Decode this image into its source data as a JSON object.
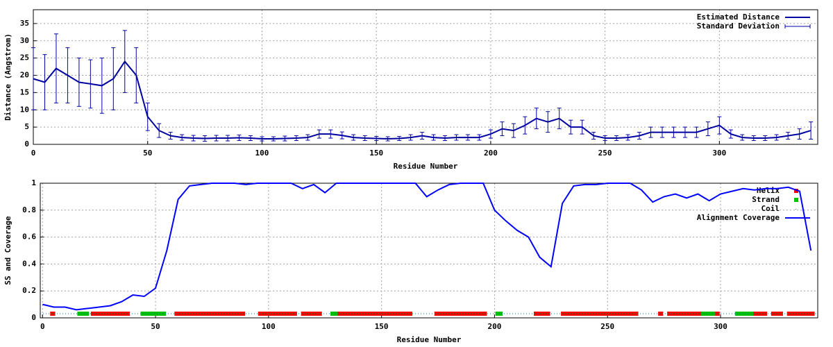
{
  "chart_data": [
    {
      "type": "line",
      "x_label": "Residue Number",
      "y_label": "Distance (Angstrom)",
      "xlim": [
        0,
        343
      ],
      "xticks": [
        0,
        50,
        100,
        150,
        200,
        250,
        300
      ],
      "ylim": [
        0,
        39
      ],
      "yticks": [
        0,
        5,
        10,
        15,
        20,
        25,
        30,
        35
      ],
      "grid": true,
      "legend": "top-right",
      "x": [
        0,
        5,
        10,
        15,
        20,
        25,
        30,
        35,
        40,
        45,
        50,
        55,
        60,
        65,
        70,
        75,
        80,
        85,
        90,
        95,
        100,
        105,
        110,
        115,
        120,
        125,
        130,
        135,
        140,
        145,
        150,
        155,
        160,
        165,
        170,
        175,
        180,
        185,
        190,
        195,
        200,
        205,
        210,
        215,
        220,
        225,
        230,
        235,
        240,
        245,
        250,
        255,
        260,
        265,
        270,
        275,
        280,
        285,
        290,
        295,
        300,
        305,
        310,
        315,
        320,
        325,
        330,
        335,
        340
      ],
      "series": [
        {
          "name": "Estimated Distance",
          "error_name": "Standard Deviation",
          "color": "#0000a0",
          "values": [
            19,
            18,
            22,
            20,
            18,
            17.5,
            17,
            19,
            24,
            20,
            8,
            4,
            2.5,
            2,
            1.8,
            1.7,
            1.8,
            1.8,
            1.9,
            1.8,
            1.6,
            1.6,
            1.7,
            1.8,
            2,
            3,
            3,
            2.6,
            2,
            1.8,
            1.7,
            1.6,
            1.7,
            2,
            2.5,
            2,
            1.8,
            2,
            2,
            2,
            3,
            4.5,
            4,
            5.5,
            7.5,
            6.5,
            7.5,
            5,
            5,
            2.5,
            1.8,
            1.8,
            2,
            2.5,
            3.5,
            3.5,
            3.5,
            3.5,
            3.5,
            4.5,
            5.5,
            3,
            2,
            1.8,
            1.8,
            2,
            2.5,
            3,
            4
          ],
          "errors": [
            9,
            8,
            10,
            8,
            7,
            7,
            8,
            9,
            9,
            8,
            4,
            2,
            1,
            0.8,
            0.8,
            0.8,
            0.8,
            0.8,
            0.8,
            0.7,
            0.6,
            0.6,
            0.7,
            0.7,
            0.8,
            1.2,
            1.2,
            1,
            0.8,
            0.7,
            0.6,
            0.6,
            0.6,
            0.8,
            1,
            0.8,
            0.7,
            0.8,
            0.8,
            0.8,
            1.2,
            2,
            2,
            2.5,
            3,
            3,
            3,
            2,
            2,
            1,
            0.7,
            0.7,
            0.8,
            1,
            1.5,
            1.5,
            1.5,
            1.5,
            1.5,
            2,
            2.5,
            1.2,
            0.8,
            0.7,
            0.7,
            0.8,
            1,
            1.5,
            2.5
          ]
        }
      ]
    },
    {
      "type": "line",
      "x_label": "Residue Number",
      "y_label": "SS and Coverage",
      "xlim": [
        -1,
        343
      ],
      "xticks": [
        0,
        50,
        100,
        150,
        200,
        250,
        300
      ],
      "ylim": [
        0,
        1
      ],
      "yticks": [
        0,
        0.2,
        0.4,
        0.6,
        0.8,
        1
      ],
      "grid": true,
      "legend": "top-right",
      "x": [
        0,
        5,
        10,
        15,
        20,
        25,
        30,
        35,
        40,
        45,
        50,
        55,
        60,
        65,
        70,
        75,
        80,
        85,
        90,
        95,
        100,
        105,
        110,
        115,
        120,
        125,
        130,
        135,
        140,
        145,
        150,
        155,
        160,
        165,
        170,
        175,
        180,
        185,
        190,
        195,
        200,
        205,
        210,
        215,
        220,
        225,
        230,
        235,
        240,
        245,
        250,
        255,
        260,
        265,
        270,
        275,
        280,
        285,
        290,
        295,
        300,
        305,
        310,
        315,
        320,
        325,
        330,
        335,
        340
      ],
      "segments": [
        {
          "name": "Helix",
          "color": "#ff0000",
          "ranges": [
            [
              4,
              5
            ],
            [
              22,
              38
            ],
            [
              59,
              89
            ],
            [
              96,
              112
            ],
            [
              115,
              123
            ],
            [
              131,
              163
            ],
            [
              174,
              196
            ],
            [
              218,
              224
            ],
            [
              230,
              263
            ],
            [
              273,
              274
            ],
            [
              277,
              291
            ],
            [
              298,
              299
            ],
            [
              315,
              320
            ],
            [
              323,
              327
            ],
            [
              330,
              341
            ]
          ]
        },
        {
          "name": "Strand",
          "color": "#00c000",
          "ranges": [
            [
              16,
              20
            ],
            [
              44,
              54
            ],
            [
              128,
              130
            ],
            [
              201,
              203
            ],
            [
              292,
              297
            ],
            [
              307,
              314
            ]
          ]
        },
        {
          "name": "Coil",
          "color": "#008080"
        }
      ],
      "series": [
        {
          "name": "Alignment Coverage",
          "color": "#0000ff",
          "values": [
            0.1,
            0.08,
            0.08,
            0.06,
            0.07,
            0.08,
            0.09,
            0.12,
            0.17,
            0.16,
            0.22,
            0.5,
            0.88,
            0.98,
            0.99,
            1,
            1,
            1,
            0.99,
            1,
            1,
            1,
            1,
            0.96,
            0.99,
            0.93,
            1,
            1,
            1,
            1,
            1,
            1,
            1,
            1,
            0.9,
            0.95,
            0.99,
            1,
            1,
            1,
            0.8,
            0.72,
            0.65,
            0.6,
            0.45,
            0.38,
            0.85,
            0.98,
            0.99,
            0.99,
            1,
            1,
            1,
            0.95,
            0.86,
            0.9,
            0.92,
            0.89,
            0.92,
            0.87,
            0.92,
            0.94,
            0.96,
            0.95,
            0.96,
            0.96,
            0.97,
            0.94,
            0.5
          ]
        }
      ]
    }
  ]
}
